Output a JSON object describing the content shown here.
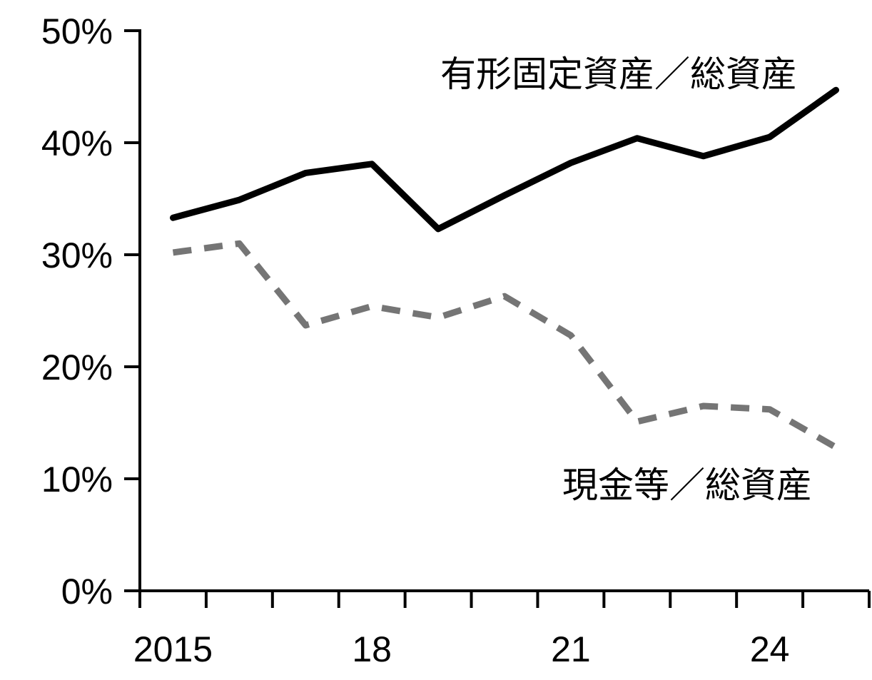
{
  "chart_data": {
    "type": "line",
    "x": [
      2015,
      2016,
      2017,
      2018,
      2019,
      2020,
      2021,
      2022,
      2023,
      2024,
      2025
    ],
    "x_tick_values": [
      2015,
      2018,
      2021,
      2024
    ],
    "x_tick_labels": [
      "2015",
      "18",
      "21",
      "24"
    ],
    "y_ticks": [
      {
        "value": 0,
        "label": "0%"
      },
      {
        "value": 10,
        "label": "10%"
      },
      {
        "value": 20,
        "label": "20%"
      },
      {
        "value": 30,
        "label": "30%"
      },
      {
        "value": 40,
        "label": "40%"
      },
      {
        "value": 50,
        "label": "50%"
      }
    ],
    "ylim": [
      0,
      50
    ],
    "xlim": [
      2014.5,
      2025.5
    ],
    "grid": false,
    "series": [
      {
        "name": "有形固定資産／総資産",
        "color": "#000000",
        "line_style": "solid",
        "values": [
          33.3,
          34.9,
          37.3,
          38.1,
          32.3,
          35.3,
          38.2,
          40.4,
          38.8,
          40.5,
          44.7
        ]
      },
      {
        "name": "現金等／総資産",
        "color": "#757575",
        "line_style": "dashed",
        "values": [
          30.2,
          31.0,
          23.7,
          25.4,
          24.4,
          26.3,
          22.8,
          15.1,
          16.5,
          16.2,
          12.8
        ]
      }
    ]
  }
}
